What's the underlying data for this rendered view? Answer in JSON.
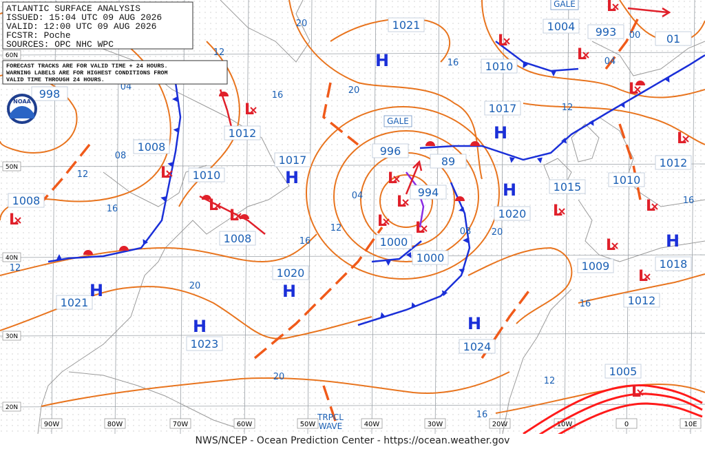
{
  "header": {
    "lines": [
      "ATLANTIC SURFACE ANALYSIS",
      "ISSUED: 15:04 UTC 09 AUG 2026",
      "VALID: 12:00 UTC 09 AUG 2026",
      "FCSTR: Poche",
      "SOURCES: OPC NHC WPC"
    ]
  },
  "note": {
    "lines": [
      "FORECAST TRACKS ARE FOR VALID TIME + 24 HOURS.",
      "WARNING LABELS ARE FOR HIGHEST CONDITIONS FROM",
      "VALID TIME THROUGH 24 HOURS."
    ]
  },
  "logo": "NOAA",
  "longitudes": [
    "90W",
    "80W",
    "70W",
    "60W",
    "50W",
    "40W",
    "30W",
    "20W",
    "10W",
    "0",
    "10E"
  ],
  "latitudes": [
    "60N",
    "50N",
    "40N",
    "30N",
    "20N"
  ],
  "pressure_labels": [
    "1021",
    "1004",
    "993",
    "01",
    "1010",
    "998",
    "1017",
    "1012",
    "1008",
    "996",
    "89",
    "1017",
    "1010",
    "994",
    "1012",
    "1010",
    "1015",
    "1008",
    "1020",
    "1008",
    "1000",
    "1000",
    "1020",
    "1009",
    "1018",
    "1021",
    "1012",
    "1023",
    "1024",
    "1005"
  ],
  "highs": [
    "H",
    "H",
    "H",
    "H",
    "H",
    "H",
    "H",
    "H",
    "H"
  ],
  "lows": [
    "L",
    "L",
    "L",
    "L",
    "L",
    "L",
    "L",
    "L",
    "L",
    "L",
    "L",
    "L",
    "L",
    "L",
    "L",
    "L",
    "L",
    "L",
    "L"
  ],
  "isobar_labels": [
    "20",
    "12",
    "04",
    "16",
    "08",
    "12",
    "16",
    "20",
    "16",
    "00",
    "04",
    "12",
    "04",
    "12",
    "08",
    "16",
    "20",
    "12",
    "20",
    "16",
    "20",
    "12",
    "16",
    "16"
  ],
  "warnings": [
    "GALE",
    "GALE"
  ],
  "tropical_wave": [
    "TRPCL",
    "WAVE"
  ],
  "footer": "NWS/NCEP - Ocean Prediction Center - https://ocean.weather.gov"
}
